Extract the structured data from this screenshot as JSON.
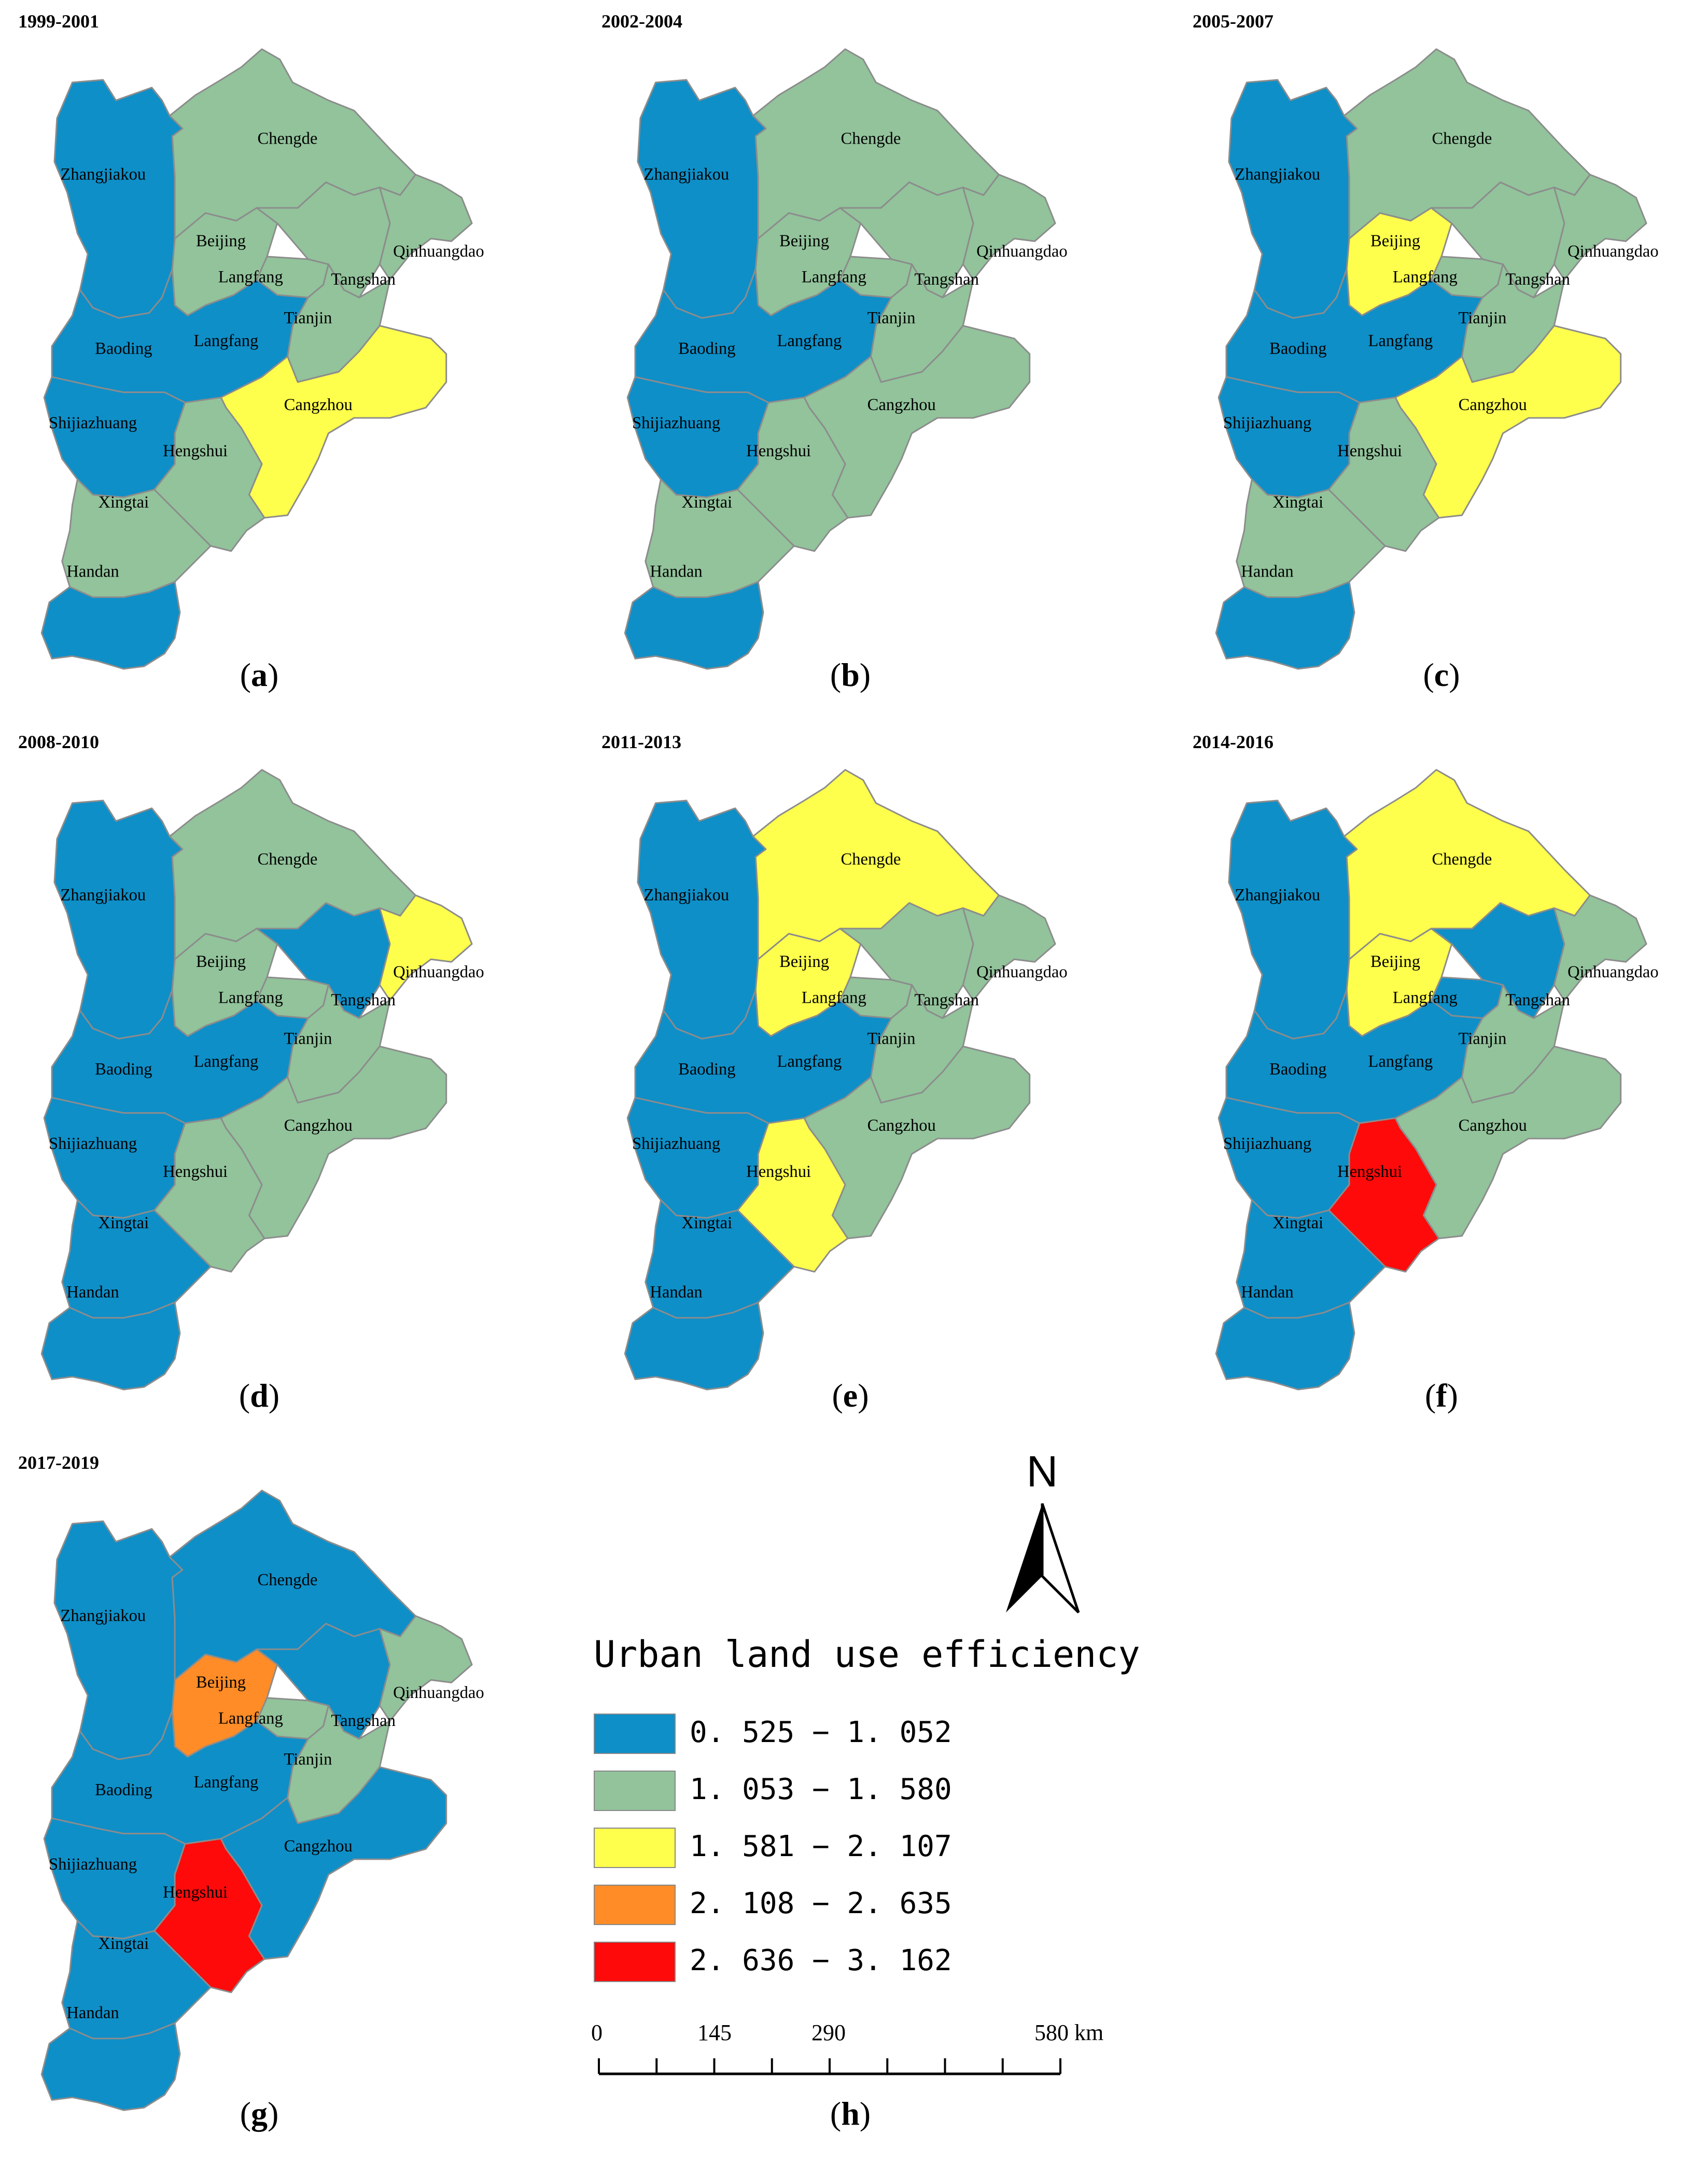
{
  "legend": {
    "title": "Urban land use efficiency",
    "classes": [
      {
        "range": "0. 525 − 1. 052",
        "color": "#0E8FC8"
      },
      {
        "range": "1. 053 − 1. 580",
        "color": "#92C39B"
      },
      {
        "range": "1. 581 − 2. 107",
        "color": "#FEFE4C"
      },
      {
        "range": "2. 108 − 2. 635",
        "color": "#FF8C26"
      },
      {
        "range": "2. 636 − 3. 162",
        "color": "#FE0A0A"
      }
    ]
  },
  "north_label": "N",
  "scale_bar": {
    "labels": [
      "0",
      "145",
      "290",
      "580 km"
    ],
    "values_km": [
      0,
      145,
      290,
      580
    ]
  },
  "panels": [
    {
      "letter": "a",
      "period": "1999-2001",
      "classes": {
        "Zhangjiakou": 0,
        "Chengde": 1,
        "Beijing": 1,
        "Langfang": 1,
        "Tangshan": 1,
        "Qinhuangdao": 1,
        "Tianjin": 1,
        "Baoding": 0,
        "Cangzhou": 2,
        "Shijiazhuang": 0,
        "Hengshui": 1,
        "Xingtai": 1,
        "Handan": 0
      }
    },
    {
      "letter": "b",
      "period": "2002-2004",
      "classes": {
        "Zhangjiakou": 0,
        "Chengde": 1,
        "Beijing": 1,
        "Langfang": 1,
        "Tangshan": 1,
        "Qinhuangdao": 1,
        "Tianjin": 1,
        "Baoding": 0,
        "Cangzhou": 1,
        "Shijiazhuang": 0,
        "Hengshui": 1,
        "Xingtai": 1,
        "Handan": 0
      }
    },
    {
      "letter": "c",
      "period": "2005-2007",
      "classes": {
        "Zhangjiakou": 0,
        "Chengde": 1,
        "Beijing": 2,
        "Langfang": 1,
        "Tangshan": 1,
        "Qinhuangdao": 1,
        "Tianjin": 1,
        "Baoding": 0,
        "Cangzhou": 2,
        "Shijiazhuang": 0,
        "Hengshui": 1,
        "Xingtai": 1,
        "Handan": 0
      }
    },
    {
      "letter": "d",
      "period": "2008-2010",
      "classes": {
        "Zhangjiakou": 0,
        "Chengde": 1,
        "Beijing": 1,
        "Langfang": 1,
        "Tangshan": 0,
        "Qinhuangdao": 2,
        "Tianjin": 1,
        "Baoding": 0,
        "Cangzhou": 1,
        "Shijiazhuang": 0,
        "Hengshui": 1,
        "Xingtai": 0,
        "Handan": 0
      }
    },
    {
      "letter": "e",
      "period": "2011-2013",
      "classes": {
        "Zhangjiakou": 0,
        "Chengde": 2,
        "Beijing": 2,
        "Langfang": 1,
        "Tangshan": 1,
        "Qinhuangdao": 1,
        "Tianjin": 1,
        "Baoding": 0,
        "Cangzhou": 1,
        "Shijiazhuang": 0,
        "Hengshui": 2,
        "Xingtai": 0,
        "Handan": 0
      }
    },
    {
      "letter": "f",
      "period": "2014-2016",
      "classes": {
        "Zhangjiakou": 0,
        "Chengde": 2,
        "Beijing": 2,
        "Langfang": 0,
        "Tangshan": 0,
        "Qinhuangdao": 1,
        "Tianjin": 1,
        "Baoding": 0,
        "Cangzhou": 1,
        "Shijiazhuang": 0,
        "Hengshui": 4,
        "Xingtai": 0,
        "Handan": 0
      }
    },
    {
      "letter": "g",
      "period": "2017-2019",
      "classes": {
        "Zhangjiakou": 0,
        "Chengde": 0,
        "Beijing": 3,
        "Langfang": 1,
        "Tangshan": 0,
        "Qinhuangdao": 1,
        "Tianjin": 1,
        "Baoding": 0,
        "Cangzhou": 0,
        "Shijiazhuang": 0,
        "Hengshui": 4,
        "Xingtai": 0,
        "Handan": 0
      }
    }
  ],
  "legend_panel_caption": "h"
}
